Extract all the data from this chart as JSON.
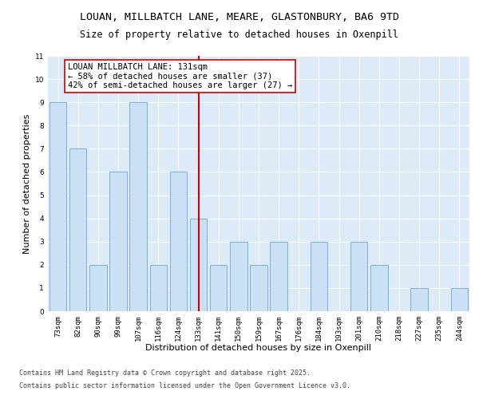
{
  "title": "LOUAN, MILLBATCH LANE, MEARE, GLASTONBURY, BA6 9TD",
  "subtitle": "Size of property relative to detached houses in Oxenpill",
  "xlabel": "Distribution of detached houses by size in Oxenpill",
  "ylabel": "Number of detached properties",
  "categories": [
    "73sqm",
    "82sqm",
    "90sqm",
    "99sqm",
    "107sqm",
    "116sqm",
    "124sqm",
    "133sqm",
    "141sqm",
    "150sqm",
    "159sqm",
    "167sqm",
    "176sqm",
    "184sqm",
    "193sqm",
    "201sqm",
    "210sqm",
    "218sqm",
    "227sqm",
    "235sqm",
    "244sqm"
  ],
  "values": [
    9,
    7,
    2,
    6,
    9,
    2,
    6,
    4,
    2,
    3,
    2,
    3,
    0,
    3,
    0,
    3,
    2,
    0,
    1,
    0,
    1
  ],
  "bar_color": "#cce0f5",
  "bar_edge_color": "#7aafd4",
  "highlight_index": 7,
  "highlight_line_color": "#cc0000",
  "highlight_box_color": "#cc0000",
  "ylim": [
    0,
    11
  ],
  "yticks": [
    0,
    1,
    2,
    3,
    4,
    5,
    6,
    7,
    8,
    9,
    10,
    11
  ],
  "annotation_title": "LOUAN MILLBATCH LANE: 131sqm",
  "annotation_line1": "← 58% of detached houses are smaller (37)",
  "annotation_line2": "42% of semi-detached houses are larger (27) →",
  "bg_color": "#ddeaf7",
  "footer_line1": "Contains HM Land Registry data © Crown copyright and database right 2025.",
  "footer_line2": "Contains public sector information licensed under the Open Government Licence v3.0.",
  "title_fontsize": 9.5,
  "subtitle_fontsize": 8.5,
  "axis_label_fontsize": 8,
  "tick_fontsize": 6.5,
  "annotation_fontsize": 7.5,
  "footer_fontsize": 6.0
}
